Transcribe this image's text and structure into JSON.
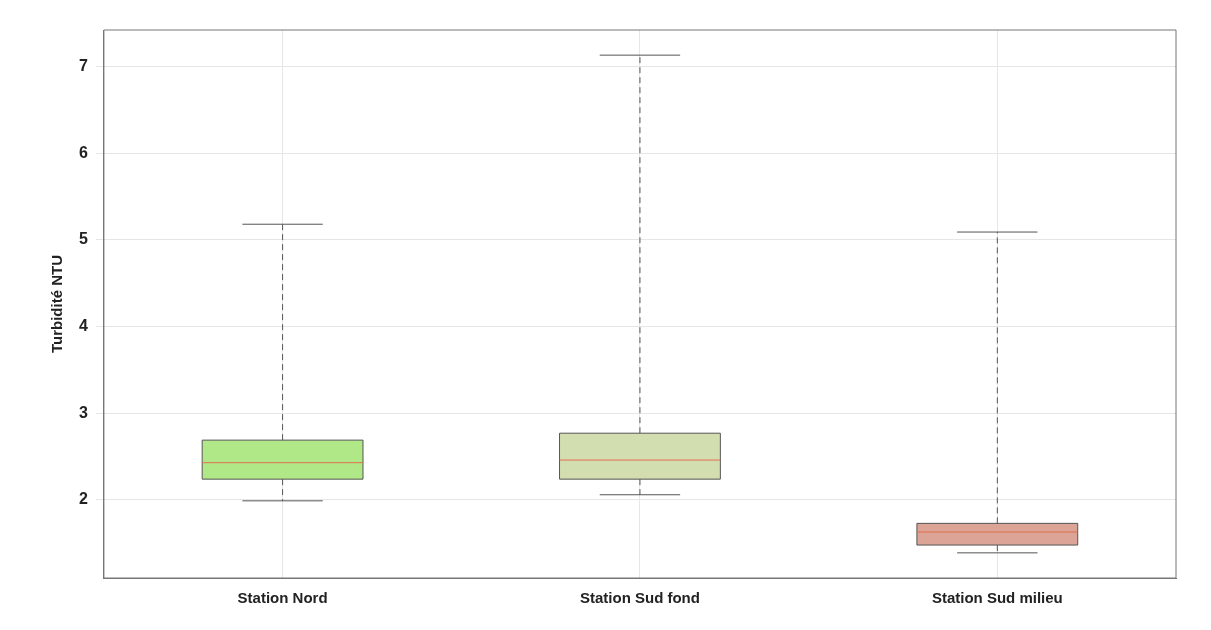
{
  "chart_data": {
    "type": "box",
    "ylabel": "Turbidité NTU",
    "categories": [
      "Station Nord",
      "Station Sud fond",
      "Station Sud milieu"
    ],
    "boxes": [
      {
        "low": 1.99,
        "q1": 2.24,
        "median": 2.43,
        "q3": 2.69,
        "high": 5.18
      },
      {
        "low": 2.06,
        "q1": 2.24,
        "median": 2.46,
        "q3": 2.77,
        "high": 7.13
      },
      {
        "low": 1.39,
        "q1": 1.48,
        "median": 1.63,
        "q3": 1.73,
        "high": 5.09
      }
    ],
    "colors": [
      "#b0e888",
      "#d3deb0",
      "#dba496"
    ],
    "ylim": [
      1.1,
      7.42
    ],
    "yticks": [
      2,
      3,
      4,
      5,
      6,
      7
    ],
    "grid": true,
    "line_style": "dashed"
  }
}
